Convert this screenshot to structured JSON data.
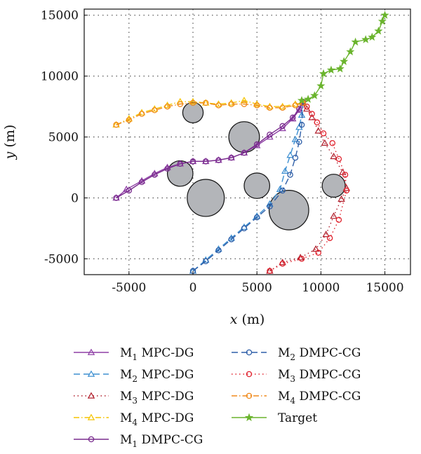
{
  "chart_data": {
    "type": "line",
    "xlabel": {
      "var": "x",
      "unit": " (m)"
    },
    "ylabel": {
      "var": "y",
      "unit": " (m)"
    },
    "xlim": [
      -8500,
      17000
    ],
    "ylim": [
      -6300,
      15500
    ],
    "xticks": [
      -5000,
      0,
      5000,
      10000,
      15000
    ],
    "yticks": [
      -5000,
      0,
      5000,
      10000,
      15000
    ],
    "grid": true,
    "obstacles": [
      {
        "x": 0,
        "y": 7000,
        "r": 800
      },
      {
        "x": 4000,
        "y": 5000,
        "r": 1200
      },
      {
        "x": -1000,
        "y": 2000,
        "r": 1000
      },
      {
        "x": 1000,
        "y": 0,
        "r": 1450
      },
      {
        "x": 5000,
        "y": 1000,
        "r": 1000
      },
      {
        "x": 7500,
        "y": -1000,
        "r": 1550
      },
      {
        "x": 11000,
        "y": 1000,
        "r": 900
      }
    ],
    "series": [
      {
        "name": "M1 MPC-DG",
        "sub": "1",
        "suffix": " MPC-DG",
        "color": "#8e3fa5",
        "dash": "",
        "marker": "triangle",
        "legend_col": 0,
        "x": [
          -6000,
          -5200,
          -4000,
          -3000,
          -2000,
          -1000,
          0,
          1000,
          2000,
          3000,
          4000,
          5000,
          6000,
          7000,
          7800,
          8300,
          8600
        ],
        "y": [
          0,
          700,
          1400,
          2000,
          2500,
          2800,
          3000,
          3000,
          3100,
          3300,
          3700,
          4300,
          5000,
          5700,
          6500,
          7200,
          7800
        ]
      },
      {
        "name": "M2 MPC-DG",
        "sub": "2",
        "suffix": " MPC-DG",
        "color": "#3d8fd1",
        "dash": "9 5",
        "marker": "triangle",
        "legend_col": 0,
        "x": [
          0,
          1000,
          2000,
          3000,
          4000,
          5000,
          6000,
          6800,
          7200,
          7600,
          8000,
          8300,
          8500,
          8600
        ],
        "y": [
          -6000,
          -5100,
          -4200,
          -3300,
          -2400,
          -1500,
          -500,
          700,
          2200,
          3500,
          4800,
          5800,
          6800,
          7800
        ]
      },
      {
        "name": "M3 MPC-DG",
        "sub": "3",
        "suffix": " MPC-DG",
        "color": "#b01e2b",
        "dash": "1.5 4",
        "marker": "triangle",
        "legend_col": 0,
        "x": [
          6000,
          7000,
          8400,
          9600,
          10400,
          11000,
          11600,
          12000,
          11700,
          11000,
          10300,
          9800,
          9300,
          8900,
          8600
        ],
        "y": [
          -6000,
          -5300,
          -4900,
          -4200,
          -3000,
          -1500,
          -100,
          800,
          2100,
          3400,
          4500,
          5500,
          6600,
          7300,
          7800
        ]
      },
      {
        "name": "M4 MPC-DG",
        "sub": "4",
        "suffix": " MPC-DG",
        "color": "#f5c400",
        "dash": "8 3 1.5 3",
        "marker": "triangle",
        "legend_col": 0,
        "x": [
          -6000,
          -5000,
          -4000,
          -3000,
          -2000,
          -1000,
          0,
          1000,
          2000,
          3000,
          4000,
          5000,
          6000,
          7000,
          8000,
          8600
        ],
        "y": [
          6000,
          6500,
          7000,
          7300,
          7600,
          7900,
          7900,
          7800,
          7700,
          7800,
          8000,
          7700,
          7500,
          7500,
          7700,
          7800
        ]
      },
      {
        "name": "M1 DMPC-CG",
        "sub": "1",
        "suffix": " DMPC-CG",
        "color": "#7a2c8e",
        "dash": "",
        "marker": "circle",
        "legend_col": 0,
        "x": [
          -6000,
          -5000,
          -4000,
          -3000,
          -2000,
          -1000,
          0,
          1000,
          2000,
          3000,
          4000,
          5000,
          6000,
          7000,
          7800,
          8300,
          8600
        ],
        "y": [
          0,
          600,
          1300,
          1900,
          2400,
          2800,
          3000,
          3000,
          3100,
          3300,
          3700,
          4400,
          5200,
          5900,
          6600,
          7300,
          7900
        ]
      },
      {
        "name": "M2 DMPC-CG",
        "sub": "2",
        "suffix": " DMPC-CG",
        "color": "#2f5fa8",
        "dash": "9 5",
        "marker": "circle",
        "legend_col": 1,
        "x": [
          0,
          1000,
          2000,
          3000,
          4000,
          5000,
          6000,
          7000,
          7600,
          8000,
          8300,
          8500,
          8600
        ],
        "y": [
          -6000,
          -5200,
          -4300,
          -3400,
          -2500,
          -1600,
          -700,
          600,
          1900,
          3300,
          4600,
          6000,
          7800
        ]
      },
      {
        "name": "M3 DMPC-CG",
        "sub": "3",
        "suffix": " DMPC-CG",
        "color": "#e0232e",
        "dash": "1.5 4",
        "marker": "circle",
        "legend_col": 1,
        "x": [
          6000,
          7000,
          8500,
          9800,
          10700,
          11400,
          12000,
          11900,
          11400,
          10900,
          10200,
          9700,
          9300,
          8900,
          8600
        ],
        "y": [
          -6000,
          -5400,
          -5000,
          -4500,
          -3300,
          -1800,
          600,
          1900,
          3200,
          4500,
          5300,
          6200,
          6900,
          7500,
          7800
        ]
      },
      {
        "name": "M4 DMPC-CG",
        "sub": "4",
        "suffix": " DMPC-CG",
        "color": "#f08a1c",
        "dash": "8 3 1.5 3",
        "marker": "circle",
        "legend_col": 1,
        "x": [
          -6000,
          -5000,
          -4000,
          -3000,
          -2000,
          -1000,
          0,
          1000,
          2000,
          3000,
          4000,
          5000,
          6000,
          7000,
          8000,
          8600
        ],
        "y": [
          6000,
          6400,
          6900,
          7200,
          7500,
          7700,
          7800,
          7800,
          7600,
          7700,
          7700,
          7600,
          7400,
          7400,
          7600,
          7800
        ]
      },
      {
        "name": "Target",
        "sub": "",
        "suffix": "Target",
        "color": "#6ab42d",
        "dash": "",
        "marker": "star",
        "legend_col": 1,
        "x": [
          8500,
          9000,
          9500,
          10000,
          10200,
          10800,
          11500,
          11800,
          12300,
          12700,
          13500,
          14000,
          14500,
          14800,
          15000
        ],
        "y": [
          8000,
          8100,
          8400,
          9200,
          10200,
          10500,
          10600,
          11200,
          12000,
          12800,
          13000,
          13200,
          13700,
          14500,
          15000
        ]
      }
    ]
  }
}
